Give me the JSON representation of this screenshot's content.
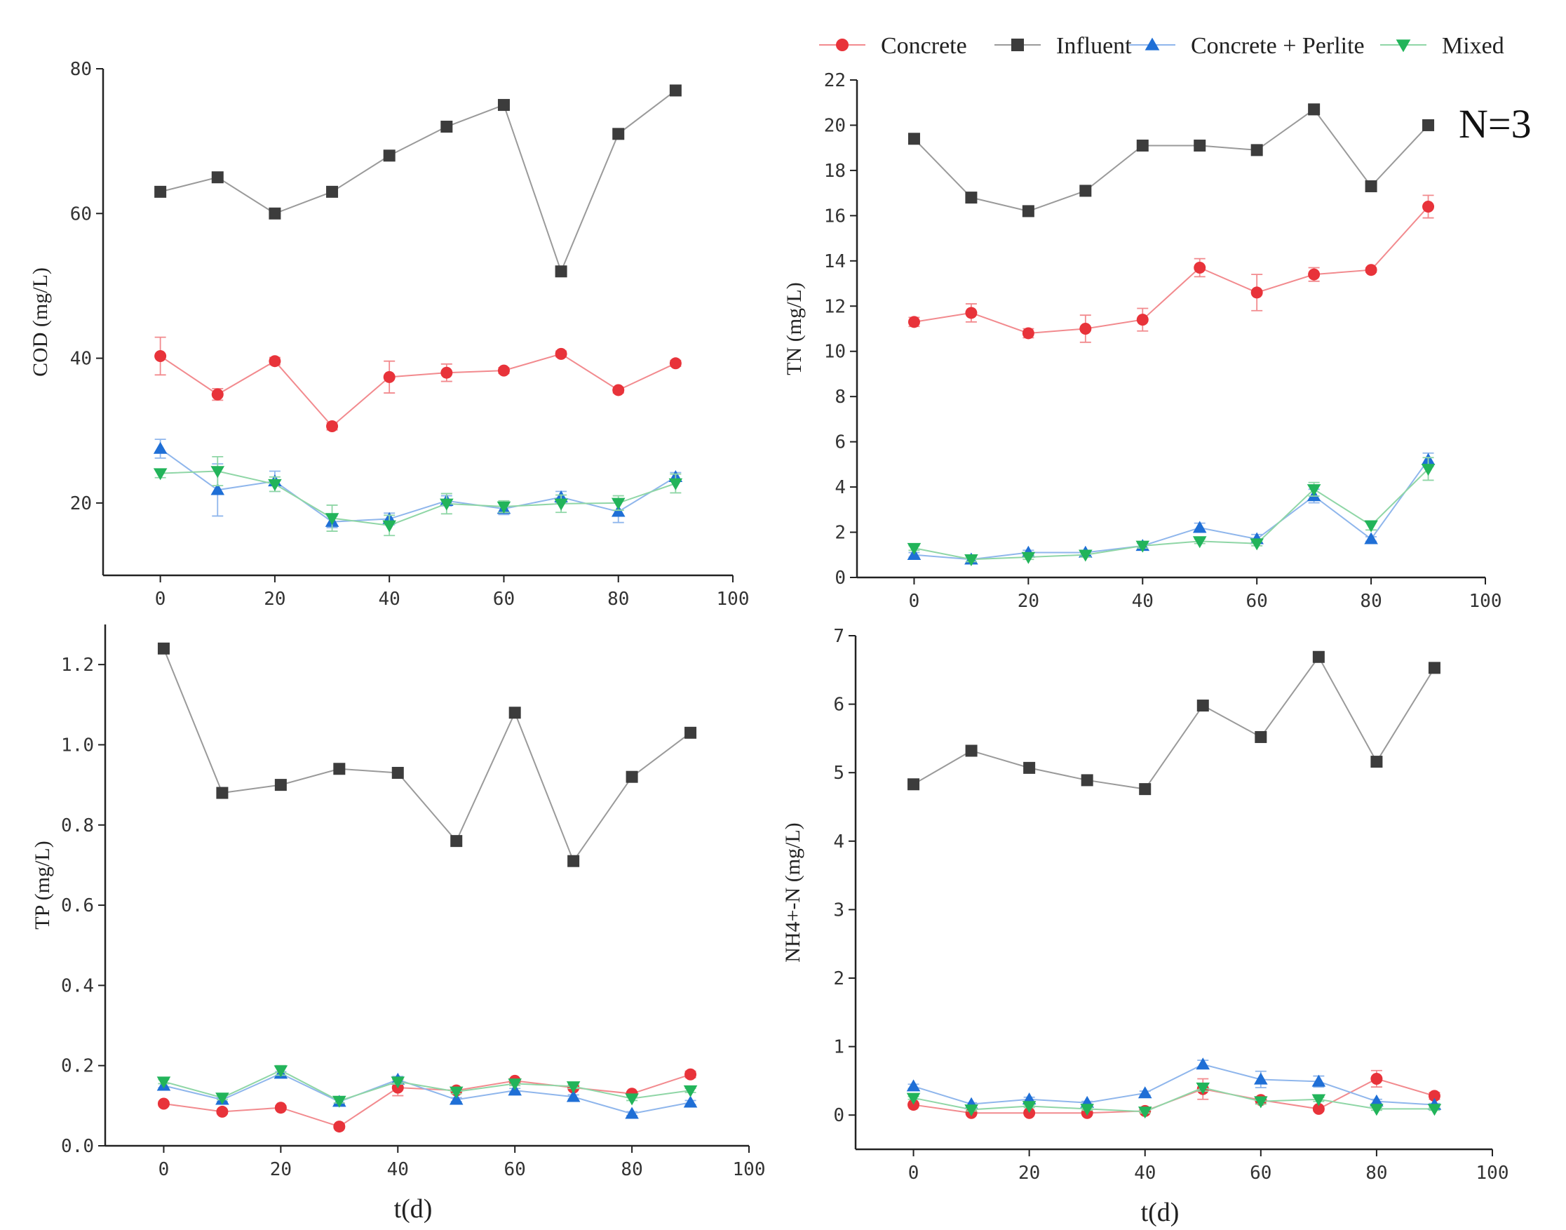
{
  "colors": {
    "concrete": "#e8333a",
    "influent": "#3c3c3c",
    "perlite": "#1f6fd6",
    "mixed": "#22b45a"
  },
  "legend": [
    {
      "key": "concrete",
      "label": "Concrete",
      "marker": "circle"
    },
    {
      "key": "influent",
      "label": "Influent",
      "marker": "square"
    },
    {
      "key": "perlite",
      "label": "Concrete + Perlite",
      "marker": "tri-up"
    },
    {
      "key": "mixed",
      "label": "Mixed",
      "marker": "tri-down"
    }
  ],
  "annotation": "N=3",
  "chart_data": [
    {
      "id": "cod",
      "type": "line",
      "ylabel": "COD (mg/L)",
      "xlabel": "",
      "xlim": [
        -10,
        100
      ],
      "ylim": [
        10,
        80
      ],
      "xticks": [
        0,
        20,
        40,
        60,
        80,
        100
      ],
      "xticklabels": [
        "0",
        "20",
        "40",
        "60",
        "80",
        "100"
      ],
      "yticks": [
        20,
        40,
        60,
        80
      ],
      "yticklabels": [
        "20",
        "40",
        "60",
        "80"
      ],
      "x": [
        0,
        10,
        20,
        30,
        40,
        50,
        60,
        70,
        80,
        90
      ],
      "series": [
        {
          "key": "influent",
          "values": [
            63,
            65,
            60,
            63,
            68,
            72,
            75,
            52,
            71,
            77
          ]
        },
        {
          "key": "concrete",
          "values": [
            40.3,
            35,
            39.6,
            30.6,
            37.4,
            38,
            38.3,
            40.6,
            35.6,
            39.3
          ],
          "errors": [
            2.6,
            0.8,
            0.5,
            0.5,
            2.2,
            1.2,
            0.4,
            0.4,
            0.4,
            0.4
          ]
        },
        {
          "key": "perlite",
          "values": [
            27.5,
            21.8,
            23,
            17.4,
            17.8,
            20.3,
            19.2,
            20.8,
            18.8,
            23.6
          ],
          "errors": [
            1.3,
            3.6,
            1.4,
            0.8,
            0.8,
            0.7,
            0.8,
            0.8,
            1.5,
            0.6
          ]
        },
        {
          "key": "mixed",
          "values": [
            24.1,
            24.4,
            22.6,
            17.9,
            16.9,
            19.9,
            19.5,
            19.9,
            20,
            22.7
          ],
          "errors": [
            0.6,
            2,
            1,
            1.8,
            1.4,
            1.4,
            0.8,
            1.2,
            1,
            1.3
          ]
        }
      ]
    },
    {
      "id": "tn",
      "type": "line",
      "ylabel": "TN (mg/L)",
      "xlabel": "",
      "xlim": [
        -10,
        100
      ],
      "ylim": [
        0,
        22
      ],
      "xticks": [
        0,
        20,
        40,
        60,
        80,
        100
      ],
      "xticklabels": [
        "0",
        "20",
        "40",
        "60",
        "80",
        "100"
      ],
      "yticks": [
        0,
        2,
        4,
        6,
        8,
        10,
        12,
        14,
        16,
        18,
        20,
        22
      ],
      "yticklabels": [
        "0",
        "2",
        "4",
        "6",
        "8",
        "10",
        "12",
        "14",
        "16",
        "18",
        "20",
        "22"
      ],
      "x": [
        0,
        10,
        20,
        30,
        40,
        50,
        60,
        70,
        80,
        90
      ],
      "series": [
        {
          "key": "influent",
          "values": [
            19.4,
            16.8,
            16.2,
            17.1,
            19.1,
            19.1,
            18.9,
            20.7,
            17.3,
            20
          ]
        },
        {
          "key": "concrete",
          "values": [
            11.3,
            11.7,
            10.8,
            11,
            11.4,
            13.7,
            12.6,
            13.4,
            13.6,
            16.4
          ],
          "errors": [
            0.2,
            0.4,
            0.2,
            0.6,
            0.5,
            0.4,
            0.8,
            0.3,
            0.1,
            0.5
          ]
        },
        {
          "key": "perlite",
          "values": [
            1,
            0.8,
            1.1,
            1.1,
            1.4,
            2.2,
            1.7,
            3.6,
            1.7,
            5.2
          ],
          "errors": [
            0.1,
            0.1,
            0.1,
            0.1,
            0.1,
            0.2,
            0.2,
            0.3,
            0.1,
            0.3
          ]
        },
        {
          "key": "mixed",
          "values": [
            1.3,
            0.8,
            0.9,
            1,
            1.4,
            1.6,
            1.5,
            3.9,
            2.3,
            4.8
          ],
          "errors": [
            0.1,
            0.1,
            0.1,
            0.1,
            0.1,
            0.1,
            0.1,
            0.3,
            0.2,
            0.5
          ]
        }
      ]
    },
    {
      "id": "tp",
      "type": "line",
      "ylabel": "TP (mg/L)",
      "xlabel": "t(d)",
      "xlim": [
        -10,
        100
      ],
      "ylim": [
        0,
        1.3
      ],
      "xticks": [
        0,
        20,
        40,
        60,
        80,
        100
      ],
      "xticklabels": [
        "0",
        "20",
        "40",
        "60",
        "80",
        "100"
      ],
      "yticks": [
        0,
        0.2,
        0.4,
        0.6,
        0.8,
        1.0,
        1.2
      ],
      "yticklabels": [
        "0.0",
        "0.2",
        "0.4",
        "0.6",
        "0.8",
        "1.0",
        "1.2"
      ],
      "x": [
        0,
        10,
        20,
        30,
        40,
        50,
        60,
        70,
        80,
        90
      ],
      "series": [
        {
          "key": "influent",
          "values": [
            1.24,
            0.88,
            0.9,
            0.94,
            0.93,
            0.76,
            1.08,
            0.71,
            0.92,
            1.03
          ]
        },
        {
          "key": "concrete",
          "values": [
            0.105,
            0.085,
            0.095,
            0.048,
            0.145,
            0.138,
            0.162,
            0.145,
            0.13,
            0.178
          ],
          "errors": [
            0.005,
            0.005,
            0.005,
            0.005,
            0.02,
            0.005,
            0.005,
            0.005,
            0.005,
            0.008
          ]
        },
        {
          "key": "perlite",
          "values": [
            0.15,
            0.115,
            0.18,
            0.11,
            0.165,
            0.115,
            0.138,
            0.122,
            0.08,
            0.108
          ],
          "errors": [
            0.005,
            0.005,
            0.005,
            0.005,
            0.008,
            0.005,
            0.005,
            0.005,
            0.005,
            0.005
          ]
        },
        {
          "key": "mixed",
          "values": [
            0.16,
            0.12,
            0.188,
            0.112,
            0.16,
            0.135,
            0.155,
            0.148,
            0.118,
            0.138
          ],
          "errors": [
            0.005,
            0.005,
            0.012,
            0.005,
            0.006,
            0.005,
            0.005,
            0.005,
            0.005,
            0.005
          ]
        }
      ]
    },
    {
      "id": "nh4",
      "type": "line",
      "ylabel": "NH4+-N (mg/L)",
      "xlabel": "t(d)",
      "xlim": [
        -10,
        100
      ],
      "ylim": [
        -0.5,
        7
      ],
      "xticks": [
        0,
        20,
        40,
        60,
        80,
        100
      ],
      "xticklabels": [
        "0",
        "20",
        "40",
        "60",
        "80",
        "100"
      ],
      "yticks": [
        0,
        1,
        2,
        3,
        4,
        5,
        6,
        7
      ],
      "yticklabels": [
        "0",
        "1",
        "2",
        "3",
        "4",
        "5",
        "6",
        "7"
      ],
      "x": [
        0,
        10,
        20,
        30,
        40,
        50,
        60,
        70,
        80,
        90
      ],
      "series": [
        {
          "key": "influent",
          "values": [
            4.83,
            5.32,
            5.07,
            4.89,
            4.76,
            5.98,
            5.52,
            6.69,
            5.16,
            6.53
          ]
        },
        {
          "key": "concrete",
          "values": [
            0.15,
            0.03,
            0.03,
            0.03,
            0.06,
            0.38,
            0.22,
            0.09,
            0.53,
            0.28
          ],
          "errors": [
            0.02,
            0.01,
            0.01,
            0.01,
            0.02,
            0.15,
            0.05,
            0.03,
            0.12,
            0.05
          ]
        },
        {
          "key": "perlite",
          "values": [
            0.42,
            0.16,
            0.23,
            0.18,
            0.32,
            0.74,
            0.52,
            0.49,
            0.2,
            0.15
          ],
          "errors": [
            0.03,
            0.02,
            0.03,
            0.02,
            0.03,
            0.06,
            0.12,
            0.08,
            0.03,
            0.02
          ]
        },
        {
          "key": "mixed",
          "values": [
            0.25,
            0.08,
            0.13,
            0.09,
            0.05,
            0.4,
            0.2,
            0.23,
            0.09,
            0.09
          ],
          "errors": [
            0.02,
            0.02,
            0.02,
            0.02,
            0.02,
            0.05,
            0.04,
            0.03,
            0.02,
            0.02
          ]
        }
      ]
    }
  ]
}
